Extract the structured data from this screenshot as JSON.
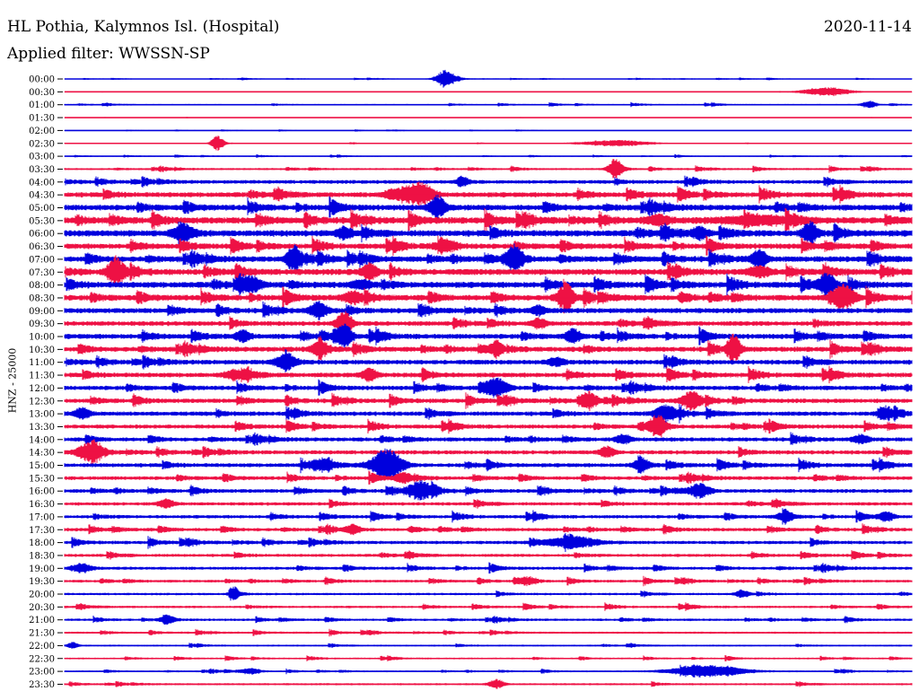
{
  "header": {
    "title": "HL Pothia, Kalymnos Isl. (Hospital)",
    "date": "2020-11-14",
    "filter": "Applied filter: WWSSN-SP"
  },
  "chart_data": {
    "type": "line",
    "ylabel": "HNZ - 25000",
    "colors": [
      "#0000dd",
      "#ee1144"
    ],
    "trace_labels": [
      "00:00",
      "00:30",
      "01:00",
      "01:30",
      "02:00",
      "02:30",
      "03:00",
      "03:30",
      "04:00",
      "04:30",
      "05:00",
      "05:30",
      "06:00",
      "06:30",
      "07:00",
      "07:30",
      "08:00",
      "08:30",
      "09:00",
      "09:30",
      "10:00",
      "10:30",
      "11:00",
      "11:30",
      "12:00",
      "12:30",
      "13:00",
      "13:30",
      "14:00",
      "14:30",
      "15:00",
      "15:30",
      "16:00",
      "16:30",
      "17:00",
      "17:30",
      "18:00",
      "18:30",
      "19:00",
      "19:30",
      "20:00",
      "20:30",
      "21:00",
      "21:30",
      "22:00",
      "22:30",
      "23:00",
      "23:30"
    ],
    "noise_level": [
      0.5,
      0.3,
      0.8,
      0.2,
      0.4,
      0.5,
      0.6,
      1.2,
      2.2,
      3.0,
      3.4,
      3.8,
      3.8,
      3.2,
      3.4,
      3.6,
      3.6,
      3.4,
      3.0,
      2.8,
      3.0,
      3.0,
      2.8,
      2.8,
      2.6,
      2.6,
      2.6,
      2.4,
      2.4,
      2.4,
      2.4,
      2.2,
      2.2,
      2.0,
      2.0,
      2.0,
      2.0,
      1.8,
      1.8,
      1.6,
      1.4,
      1.4,
      1.4,
      1.2,
      1.0,
      1.0,
      1.0,
      1.2
    ],
    "events": [
      [
        [
          0.45,
          10,
          8
        ]
      ],
      [
        [
          0.9,
          5,
          20
        ]
      ],
      [
        [
          0.95,
          4,
          6
        ]
      ],
      [],
      [],
      [
        [
          0.18,
          8,
          5
        ],
        [
          0.65,
          3,
          30
        ]
      ],
      [],
      [
        [
          0.65,
          10,
          6
        ]
      ],
      [
        [
          0.47,
          6,
          5
        ]
      ],
      [
        [
          0.42,
          12,
          10
        ],
        [
          0.39,
          6,
          8
        ]
      ],
      [
        [
          0.44,
          13,
          6
        ]
      ],
      [
        [
          0.82,
          4,
          30
        ],
        [
          0.7,
          5,
          10
        ]
      ],
      [
        [
          0.88,
          12,
          6
        ],
        [
          0.14,
          8,
          8
        ],
        [
          0.33,
          6,
          6
        ],
        [
          0.75,
          6,
          6
        ]
      ],
      [
        [
          0.45,
          4,
          10
        ]
      ],
      [
        [
          0.27,
          12,
          6
        ],
        [
          0.53,
          13,
          7
        ],
        [
          0.82,
          10,
          6
        ]
      ],
      [
        [
          0.06,
          16,
          6
        ],
        [
          0.36,
          9,
          6
        ],
        [
          0.82,
          6,
          8
        ]
      ],
      [
        [
          0.9,
          12,
          6
        ],
        [
          0.22,
          6,
          8
        ],
        [
          0.35,
          5,
          8
        ]
      ],
      [
        [
          0.59,
          12,
          6
        ],
        [
          0.92,
          13,
          9
        ],
        [
          0.34,
          6,
          8
        ]
      ],
      [
        [
          0.3,
          9,
          7
        ],
        [
          0.56,
          5,
          6
        ]
      ],
      [
        [
          0.33,
          13,
          6
        ],
        [
          0.56,
          5,
          6
        ]
      ],
      [
        [
          0.33,
          12,
          6
        ],
        [
          0.6,
          8,
          6
        ],
        [
          0.21,
          6,
          6
        ]
      ],
      [
        [
          0.51,
          9,
          5
        ],
        [
          0.79,
          14,
          5
        ],
        [
          0.3,
          7,
          6
        ]
      ],
      [
        [
          0.26,
          8,
          8
        ],
        [
          0.58,
          5,
          6
        ]
      ],
      [
        [
          0.36,
          8,
          6
        ],
        [
          0.2,
          5,
          8
        ]
      ],
      [
        [
          0.51,
          10,
          9
        ]
      ],
      [
        [
          0.74,
          10,
          8
        ],
        [
          0.62,
          8,
          6
        ]
      ],
      [
        [
          0.71,
          9,
          9
        ],
        [
          0.02,
          6,
          6
        ],
        [
          0.97,
          6,
          6
        ]
      ],
      [
        [
          0.7,
          12,
          7
        ]
      ],
      [
        [
          0.66,
          5,
          6
        ],
        [
          0.94,
          5,
          6
        ]
      ],
      [
        [
          0.03,
          10,
          10
        ],
        [
          0.64,
          6,
          6
        ]
      ],
      [
        [
          0.38,
          18,
          12
        ],
        [
          0.3,
          5,
          8
        ],
        [
          0.68,
          6,
          6
        ]
      ],
      [
        [
          0.4,
          6,
          6
        ]
      ],
      [
        [
          0.42,
          11,
          10
        ],
        [
          0.75,
          8,
          8
        ]
      ],
      [
        [
          0.12,
          5,
          6
        ]
      ],
      [
        [
          0.85,
          5,
          6
        ],
        [
          0.97,
          5,
          6
        ]
      ],
      [
        [
          0.34,
          5,
          6
        ]
      ],
      [
        [
          0.6,
          6,
          20
        ]
      ],
      [],
      [
        [
          0.02,
          5,
          8
        ]
      ],
      [
        [
          0.55,
          3,
          6
        ]
      ],
      [
        [
          0.2,
          6,
          4
        ],
        [
          0.8,
          4,
          6
        ]
      ],
      [],
      [
        [
          0.12,
          4,
          6
        ]
      ],
      [],
      [
        [
          0.01,
          4,
          4
        ]
      ],
      [],
      [
        [
          0.76,
          6,
          30
        ],
        [
          0.22,
          3,
          8
        ]
      ],
      [
        [
          0.51,
          5,
          6
        ]
      ]
    ]
  }
}
